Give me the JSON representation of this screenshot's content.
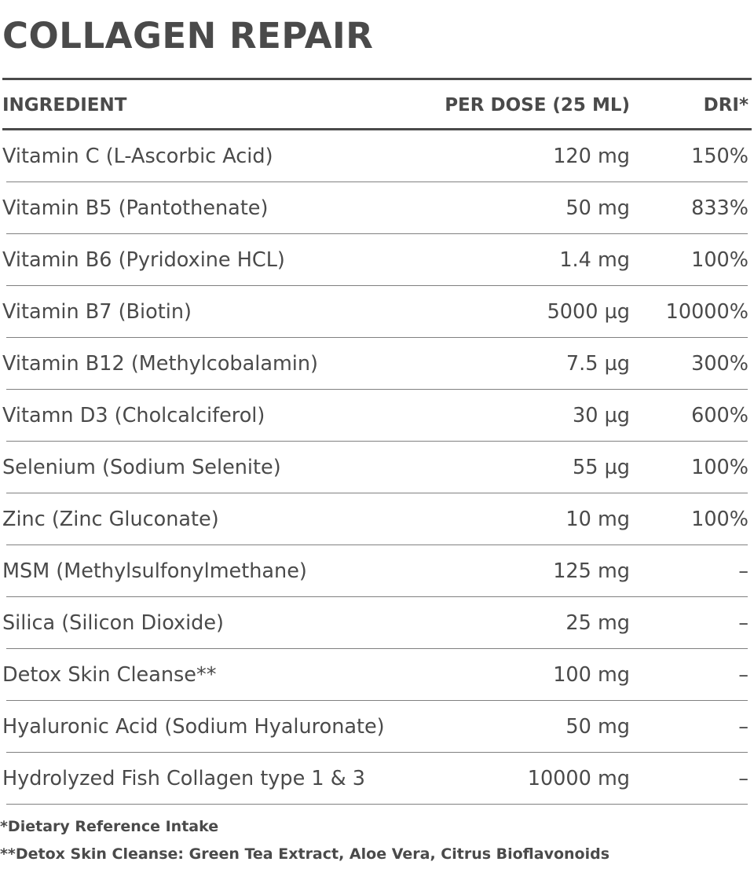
{
  "title": "COLLAGEN REPAIR",
  "table": {
    "headers": [
      "INGREDIENT",
      "PER DOSE (25 ML)",
      "DRI*"
    ],
    "rows": [
      [
        "Vitamin C (L-Ascorbic Acid)",
        "120 mg",
        "150%"
      ],
      [
        "Vitamin B5 (Pantothenate)",
        "50 mg",
        "833%"
      ],
      [
        "Vitamin B6 (Pyridoxine HCL)",
        "1.4 mg",
        "100%"
      ],
      [
        "Vitamin B7 (Biotin)",
        "5000 µg",
        "10000%"
      ],
      [
        "Vitamin B12 (Methylcobalamin)",
        "7.5 µg",
        "300%"
      ],
      [
        "Vitamn D3 (Cholcalciferol)",
        "30 µg",
        "600%"
      ],
      [
        "Selenium (Sodium Selenite)",
        "55 µg",
        "100%"
      ],
      [
        "Zinc (Zinc Gluconate)",
        "10 mg",
        "100%"
      ],
      [
        "MSM (Methylsulfonylmethane)",
        "125 mg",
        "–"
      ],
      [
        "Silica (Silicon Dioxide)",
        "25 mg",
        "–"
      ],
      [
        "Detox Skin Cleanse**",
        "100 mg",
        "–"
      ],
      [
        "Hyaluronic Acid (Sodium Hyaluronate)",
        "50 mg",
        "–"
      ],
      [
        "Hydrolyzed Fish Collagen type 1 & 3",
        "10000 mg",
        "–"
      ]
    ]
  },
  "footnotes": [
    "*Dietary Reference Intake",
    "**Detox Skin Cleanse: Green Tea Extract, Aloe Vera, Citrus Bioflavonoids"
  ]
}
